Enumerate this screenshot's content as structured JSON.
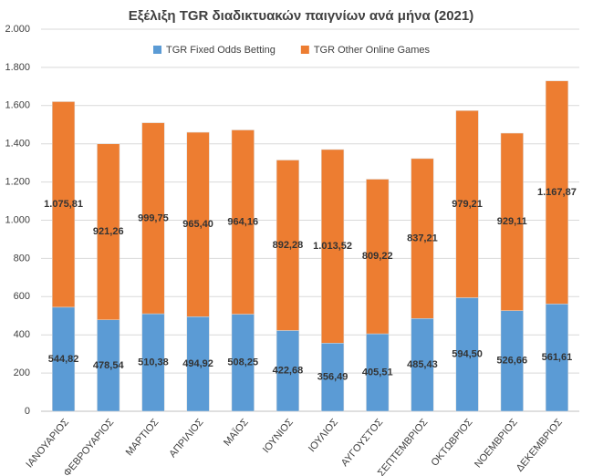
{
  "chart_data": {
    "type": "stacked_bar",
    "title": "Εξέλιξη TGR διαδικτυακών παιγνίων ανά μήνα (2021)",
    "categories": [
      "ΙΑΝΟΥΑΡΙΟΣ",
      "ΦΕΒΡΟΥΑΡΙΟΣ",
      "ΜΑΡΤΙΟΣ",
      "ΑΠΡΙΛΙΟΣ",
      "ΜΑΪΟΣ",
      "ΙΟΥΝΙΟΣ",
      "ΙΟΥΛΙΟΣ",
      "ΑΥΓΟΥΣΤΟΣ",
      "ΣΕΠΤΕΜΒΡΙΟΣ",
      "ΟΚΤΩΒΡΙΟΣ",
      "ΝΟΕΜΒΡΙΟΣ",
      "ΔΕΚΕΜΒΡΙΟΣ"
    ],
    "series": [
      {
        "name": "TGR Fixed Odds Betting",
        "color": "#5b9bd5",
        "values": [
          544.82,
          478.54,
          510.38,
          494.92,
          508.25,
          422.68,
          356.49,
          405.51,
          485.43,
          594.5,
          526.66,
          561.61
        ],
        "value_labels": [
          "544,82",
          "478,54",
          "510,38",
          "494,92",
          "508,25",
          "422,68",
          "356,49",
          "405,51",
          "485,43",
          "594,50",
          "526,66",
          "561,61"
        ]
      },
      {
        "name": "TGR Other Online Games",
        "color": "#ed7d31",
        "values": [
          1075.81,
          921.26,
          999.75,
          965.4,
          964.16,
          892.28,
          1013.52,
          809.22,
          837.21,
          979.21,
          929.11,
          1167.87
        ],
        "value_labels": [
          "1.075,81",
          "921,26",
          "999,75",
          "965,40",
          "964,16",
          "892,28",
          "1.013,52",
          "809,22",
          "837,21",
          "979,21",
          "929,11",
          "1.167,87"
        ]
      }
    ],
    "ylim": [
      0,
      2000
    ],
    "yticks": [
      0,
      200,
      400,
      600,
      800,
      {
        "value": 1000,
        "label": "1.000"
      },
      {
        "value": 1200,
        "label": "1.200"
      },
      {
        "value": 1400,
        "label": "1.400"
      },
      {
        "value": 1600,
        "label": "1.600"
      },
      {
        "value": 1800,
        "label": "1.800"
      },
      {
        "value": 2000,
        "label": "2.000"
      }
    ],
    "grid": true,
    "legend": "top"
  }
}
